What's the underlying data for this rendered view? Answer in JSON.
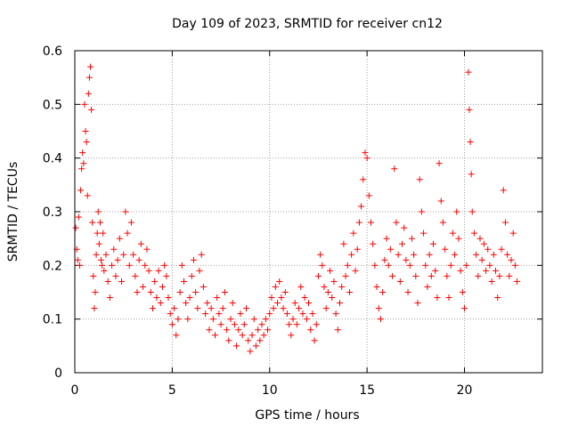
{
  "chart_data": {
    "type": "scatter",
    "title": "Day 109 of 2023, SRMTID for receiver cn12",
    "xlabel": "GPS time / hours",
    "ylabel": "SRMTID / TECUs",
    "xlim": [
      0,
      24
    ],
    "ylim": [
      0,
      0.6
    ],
    "grid": true,
    "marker": "+",
    "color": "#ff0000",
    "x_ticks": [
      0,
      5,
      10,
      15,
      20
    ],
    "x_tick_labels": [
      "0",
      "5",
      "10",
      "15",
      "20"
    ],
    "y_ticks": [
      0,
      0.1,
      0.2,
      0.3,
      0.4,
      0.5,
      0.6
    ],
    "y_tick_labels": [
      "0",
      "0.1",
      "0.2",
      "0.3",
      "0.4",
      "0.5",
      "0.6"
    ],
    "points": [
      [
        0.05,
        0.27
      ],
      [
        0.1,
        0.23
      ],
      [
        0.15,
        0.21
      ],
      [
        0.2,
        0.29
      ],
      [
        0.25,
        0.2
      ],
      [
        0.3,
        0.34
      ],
      [
        0.35,
        0.38
      ],
      [
        0.4,
        0.41
      ],
      [
        0.45,
        0.39
      ],
      [
        0.5,
        0.5
      ],
      [
        0.55,
        0.45
      ],
      [
        0.6,
        0.43
      ],
      [
        0.65,
        0.33
      ],
      [
        0.7,
        0.52
      ],
      [
        0.75,
        0.55
      ],
      [
        0.8,
        0.57
      ],
      [
        0.85,
        0.49
      ],
      [
        0.9,
        0.28
      ],
      [
        0.95,
        0.18
      ],
      [
        1.0,
        0.12
      ],
      [
        1.05,
        0.15
      ],
      [
        1.1,
        0.22
      ],
      [
        1.15,
        0.26
      ],
      [
        1.2,
        0.3
      ],
      [
        1.25,
        0.24
      ],
      [
        1.3,
        0.28
      ],
      [
        1.35,
        0.21
      ],
      [
        1.4,
        0.2
      ],
      [
        1.45,
        0.26
      ],
      [
        1.5,
        0.19
      ],
      [
        1.6,
        0.22
      ],
      [
        1.7,
        0.17
      ],
      [
        1.8,
        0.14
      ],
      [
        1.9,
        0.2
      ],
      [
        2.0,
        0.23
      ],
      [
        2.1,
        0.18
      ],
      [
        2.2,
        0.21
      ],
      [
        2.3,
        0.25
      ],
      [
        2.4,
        0.17
      ],
      [
        2.5,
        0.22
      ],
      [
        2.6,
        0.3
      ],
      [
        2.7,
        0.26
      ],
      [
        2.8,
        0.2
      ],
      [
        2.9,
        0.28
      ],
      [
        3.0,
        0.22
      ],
      [
        3.1,
        0.18
      ],
      [
        3.2,
        0.15
      ],
      [
        3.3,
        0.21
      ],
      [
        3.4,
        0.24
      ],
      [
        3.5,
        0.16
      ],
      [
        3.6,
        0.2
      ],
      [
        3.7,
        0.23
      ],
      [
        3.8,
        0.19
      ],
      [
        3.9,
        0.15
      ],
      [
        4.0,
        0.12
      ],
      [
        4.1,
        0.17
      ],
      [
        4.2,
        0.14
      ],
      [
        4.3,
        0.19
      ],
      [
        4.4,
        0.13
      ],
      [
        4.5,
        0.16
      ],
      [
        4.6,
        0.2
      ],
      [
        4.7,
        0.18
      ],
      [
        4.8,
        0.14
      ],
      [
        4.9,
        0.11
      ],
      [
        5.0,
        0.09
      ],
      [
        5.1,
        0.12
      ],
      [
        5.2,
        0.07
      ],
      [
        5.3,
        0.1
      ],
      [
        5.4,
        0.15
      ],
      [
        5.5,
        0.2
      ],
      [
        5.6,
        0.17
      ],
      [
        5.7,
        0.13
      ],
      [
        5.8,
        0.1
      ],
      [
        5.9,
        0.14
      ],
      [
        6.0,
        0.18
      ],
      [
        6.1,
        0.21
      ],
      [
        6.2,
        0.15
      ],
      [
        6.3,
        0.12
      ],
      [
        6.4,
        0.19
      ],
      [
        6.5,
        0.22
      ],
      [
        6.6,
        0.16
      ],
      [
        6.7,
        0.11
      ],
      [
        6.8,
        0.13
      ],
      [
        6.9,
        0.08
      ],
      [
        7.0,
        0.12
      ],
      [
        7.1,
        0.1
      ],
      [
        7.2,
        0.07
      ],
      [
        7.3,
        0.14
      ],
      [
        7.4,
        0.11
      ],
      [
        7.5,
        0.09
      ],
      [
        7.6,
        0.12
      ],
      [
        7.7,
        0.15
      ],
      [
        7.8,
        0.08
      ],
      [
        7.9,
        0.06
      ],
      [
        8.0,
        0.1
      ],
      [
        8.1,
        0.13
      ],
      [
        8.2,
        0.09
      ],
      [
        8.3,
        0.05
      ],
      [
        8.4,
        0.08
      ],
      [
        8.5,
        0.11
      ],
      [
        8.6,
        0.07
      ],
      [
        8.7,
        0.09
      ],
      [
        8.8,
        0.12
      ],
      [
        8.9,
        0.06
      ],
      [
        9.0,
        0.04
      ],
      [
        9.1,
        0.07
      ],
      [
        9.2,
        0.1
      ],
      [
        9.3,
        0.05
      ],
      [
        9.4,
        0.08
      ],
      [
        9.5,
        0.06
      ],
      [
        9.6,
        0.09
      ],
      [
        9.7,
        0.07
      ],
      [
        9.8,
        0.1
      ],
      [
        9.9,
        0.08
      ],
      [
        10.0,
        0.11
      ],
      [
        10.1,
        0.14
      ],
      [
        10.2,
        0.12
      ],
      [
        10.3,
        0.16
      ],
      [
        10.4,
        0.13
      ],
      [
        10.5,
        0.17
      ],
      [
        10.6,
        0.14
      ],
      [
        10.7,
        0.12
      ],
      [
        10.8,
        0.15
      ],
      [
        10.9,
        0.11
      ],
      [
        11.0,
        0.09
      ],
      [
        11.1,
        0.07
      ],
      [
        11.2,
        0.1
      ],
      [
        11.3,
        0.13
      ],
      [
        11.4,
        0.09
      ],
      [
        11.5,
        0.12
      ],
      [
        11.6,
        0.16
      ],
      [
        11.7,
        0.11
      ],
      [
        11.8,
        0.14
      ],
      [
        11.9,
        0.1
      ],
      [
        12.0,
        0.13
      ],
      [
        12.1,
        0.08
      ],
      [
        12.2,
        0.11
      ],
      [
        12.3,
        0.06
      ],
      [
        12.4,
        0.09
      ],
      [
        12.5,
        0.18
      ],
      [
        12.6,
        0.22
      ],
      [
        12.7,
        0.2
      ],
      [
        12.8,
        0.16
      ],
      [
        12.9,
        0.12
      ],
      [
        13.0,
        0.15
      ],
      [
        13.1,
        0.19
      ],
      [
        13.2,
        0.14
      ],
      [
        13.3,
        0.17
      ],
      [
        13.4,
        0.11
      ],
      [
        13.5,
        0.08
      ],
      [
        13.6,
        0.13
      ],
      [
        13.7,
        0.16
      ],
      [
        13.8,
        0.24
      ],
      [
        13.9,
        0.18
      ],
      [
        14.0,
        0.2
      ],
      [
        14.1,
        0.15
      ],
      [
        14.2,
        0.22
      ],
      [
        14.3,
        0.26
      ],
      [
        14.4,
        0.19
      ],
      [
        14.5,
        0.23
      ],
      [
        14.6,
        0.28
      ],
      [
        14.7,
        0.31
      ],
      [
        14.8,
        0.36
      ],
      [
        14.9,
        0.41
      ],
      [
        15.0,
        0.4
      ],
      [
        15.1,
        0.33
      ],
      [
        15.2,
        0.28
      ],
      [
        15.3,
        0.24
      ],
      [
        15.4,
        0.2
      ],
      [
        15.5,
        0.16
      ],
      [
        15.6,
        0.12
      ],
      [
        15.7,
        0.1
      ],
      [
        15.8,
        0.15
      ],
      [
        15.9,
        0.21
      ],
      [
        16.0,
        0.25
      ],
      [
        16.1,
        0.2
      ],
      [
        16.2,
        0.23
      ],
      [
        16.3,
        0.18
      ],
      [
        16.4,
        0.38
      ],
      [
        16.5,
        0.28
      ],
      [
        16.6,
        0.22
      ],
      [
        16.7,
        0.17
      ],
      [
        16.8,
        0.24
      ],
      [
        16.9,
        0.27
      ],
      [
        17.0,
        0.21
      ],
      [
        17.1,
        0.15
      ],
      [
        17.2,
        0.2
      ],
      [
        17.3,
        0.25
      ],
      [
        17.4,
        0.22
      ],
      [
        17.5,
        0.18
      ],
      [
        17.6,
        0.13
      ],
      [
        17.7,
        0.36
      ],
      [
        17.8,
        0.3
      ],
      [
        17.9,
        0.26
      ],
      [
        18.0,
        0.2
      ],
      [
        18.1,
        0.16
      ],
      [
        18.2,
        0.22
      ],
      [
        18.3,
        0.18
      ],
      [
        18.4,
        0.24
      ],
      [
        18.5,
        0.19
      ],
      [
        18.6,
        0.14
      ],
      [
        18.7,
        0.39
      ],
      [
        18.8,
        0.32
      ],
      [
        18.9,
        0.28
      ],
      [
        19.0,
        0.23
      ],
      [
        19.1,
        0.18
      ],
      [
        19.2,
        0.14
      ],
      [
        19.3,
        0.2
      ],
      [
        19.4,
        0.26
      ],
      [
        19.5,
        0.22
      ],
      [
        19.6,
        0.3
      ],
      [
        19.7,
        0.25
      ],
      [
        19.8,
        0.19
      ],
      [
        19.9,
        0.15
      ],
      [
        20.0,
        0.12
      ],
      [
        20.1,
        0.2
      ],
      [
        20.2,
        0.56
      ],
      [
        20.25,
        0.49
      ],
      [
        20.3,
        0.43
      ],
      [
        20.35,
        0.37
      ],
      [
        20.4,
        0.3
      ],
      [
        20.5,
        0.26
      ],
      [
        20.6,
        0.22
      ],
      [
        20.7,
        0.18
      ],
      [
        20.8,
        0.25
      ],
      [
        20.9,
        0.21
      ],
      [
        21.0,
        0.24
      ],
      [
        21.1,
        0.19
      ],
      [
        21.2,
        0.23
      ],
      [
        21.3,
        0.2
      ],
      [
        21.4,
        0.17
      ],
      [
        21.5,
        0.22
      ],
      [
        21.6,
        0.19
      ],
      [
        21.7,
        0.14
      ],
      [
        21.8,
        0.18
      ],
      [
        21.9,
        0.23
      ],
      [
        22.0,
        0.34
      ],
      [
        22.1,
        0.28
      ],
      [
        22.2,
        0.22
      ],
      [
        22.3,
        0.18
      ],
      [
        22.4,
        0.21
      ],
      [
        22.5,
        0.26
      ],
      [
        22.6,
        0.2
      ],
      [
        22.7,
        0.17
      ]
    ]
  }
}
